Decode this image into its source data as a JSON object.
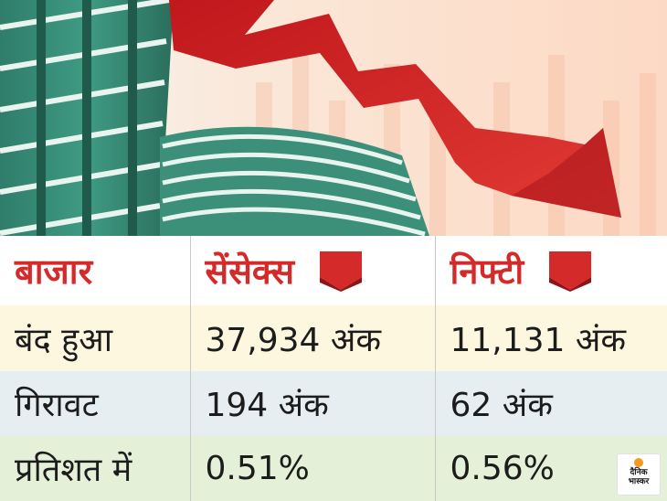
{
  "colors": {
    "header_text": "#d42a2a",
    "row_closed_bg": "#fdf7df",
    "row_fall_bg": "#e6eef1",
    "row_percent_bg": "#e4f0d8",
    "arrow_red": "#d42a2a"
  },
  "hero": {
    "icon": "falling-market-arrow-over-stock-exchange-building"
  },
  "table": {
    "headers": {
      "market": "बाजार",
      "sensex": "सेंसेक्स",
      "nifty": "निफ्टी"
    },
    "header_icons": {
      "sensex": "down-arrow-icon",
      "nifty": "down-arrow-icon"
    },
    "rows": [
      {
        "label": "बंद हुआ",
        "sensex": "37,934 अंक",
        "nifty": "11,131 अंक"
      },
      {
        "label": "गिरावट",
        "sensex": "194 अंक",
        "nifty": "62 अंक"
      },
      {
        "label": "प्रतिशत में",
        "sensex": "0.51%",
        "nifty": "0.56%"
      }
    ]
  },
  "logo": {
    "line1": "दैनिक",
    "line2": "भास्कर"
  }
}
